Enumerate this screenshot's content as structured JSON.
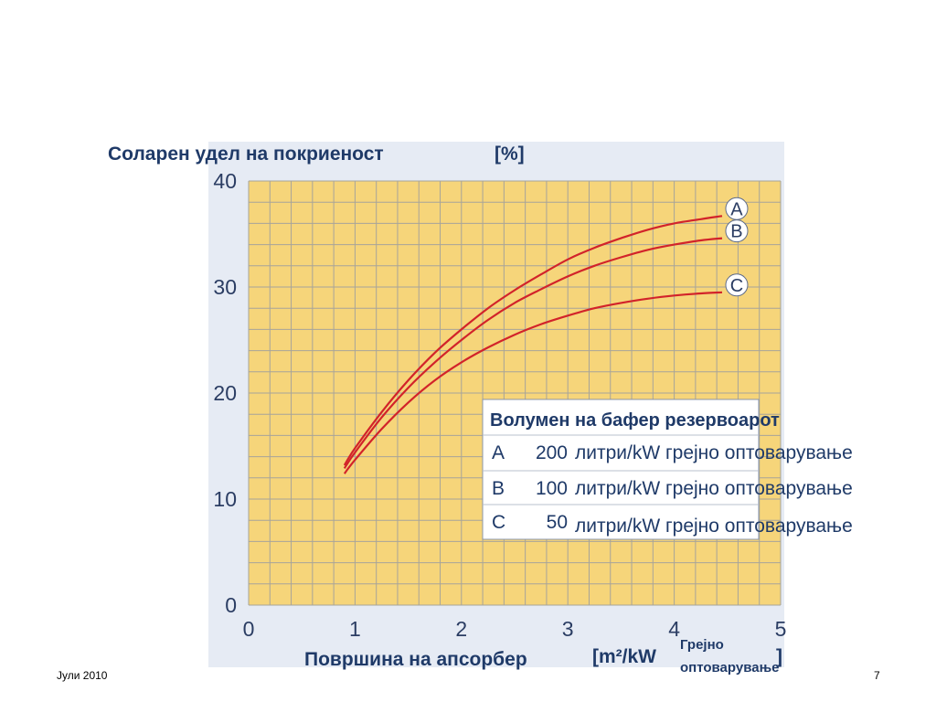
{
  "chart_data": {
    "type": "line",
    "ylabel": "Соларен удел на покриеност",
    "yunit": "[%]",
    "xlabel": "Површина на апсорбер",
    "xunit_open": "[m²/kW",
    "xunit_sub": [
      "Грејно",
      "оптоварување"
    ],
    "xunit_close": "]",
    "xlim": [
      0,
      5
    ],
    "ylim": [
      0,
      40
    ],
    "xticks": [
      "0",
      "1",
      "2",
      "3",
      "4",
      "5"
    ],
    "yticks": [
      "0",
      "10",
      "20",
      "30",
      "40"
    ],
    "grid": true,
    "series": [
      {
        "name": "A",
        "x": [
          0.9,
          1.0,
          1.25,
          1.5,
          1.75,
          2.0,
          2.25,
          2.5,
          2.75,
          3.0,
          3.25,
          3.5,
          3.75,
          4.0,
          4.25,
          4.45
        ],
        "values": [
          13.2,
          14.8,
          18.2,
          21.2,
          23.8,
          26.0,
          28.0,
          29.7,
          31.2,
          32.6,
          33.7,
          34.6,
          35.4,
          36.0,
          36.4,
          36.7
        ]
      },
      {
        "name": "B",
        "x": [
          0.9,
          1.0,
          1.25,
          1.5,
          1.75,
          2.0,
          2.25,
          2.5,
          2.75,
          3.0,
          3.25,
          3.5,
          3.75,
          4.0,
          4.25,
          4.45
        ],
        "values": [
          12.9,
          14.4,
          17.7,
          20.5,
          22.9,
          25.0,
          26.9,
          28.5,
          29.8,
          31.0,
          32.0,
          32.8,
          33.5,
          34.0,
          34.4,
          34.6
        ]
      },
      {
        "name": "C",
        "x": [
          0.9,
          1.0,
          1.25,
          1.5,
          1.75,
          2.0,
          2.25,
          2.5,
          2.75,
          3.0,
          3.25,
          3.5,
          3.75,
          4.0,
          4.25,
          4.45
        ],
        "values": [
          12.4,
          13.7,
          16.6,
          19.1,
          21.2,
          22.9,
          24.3,
          25.5,
          26.5,
          27.3,
          28.0,
          28.5,
          28.9,
          29.2,
          29.4,
          29.5
        ]
      }
    ],
    "legend": {
      "title": "Волумен на бафер резервоарот",
      "rows": [
        {
          "key": "A",
          "value": "200",
          "text": "литри/kW грејно оптоварување"
        },
        {
          "key": "B",
          "value": "100",
          "text": "литри/kW грејно оптоварување"
        },
        {
          "key": "C",
          "value": "50",
          "text": "литри/kW грејно оптоварување"
        }
      ]
    }
  },
  "colors": {
    "plot_bg": "#f6d57a",
    "panel_bg": "#e6ebf4",
    "grid": "#a7a49a",
    "curve": "#d2232a",
    "text": "#1f3a68"
  },
  "footer": {
    "date": "Јули 2010",
    "page": "7"
  }
}
